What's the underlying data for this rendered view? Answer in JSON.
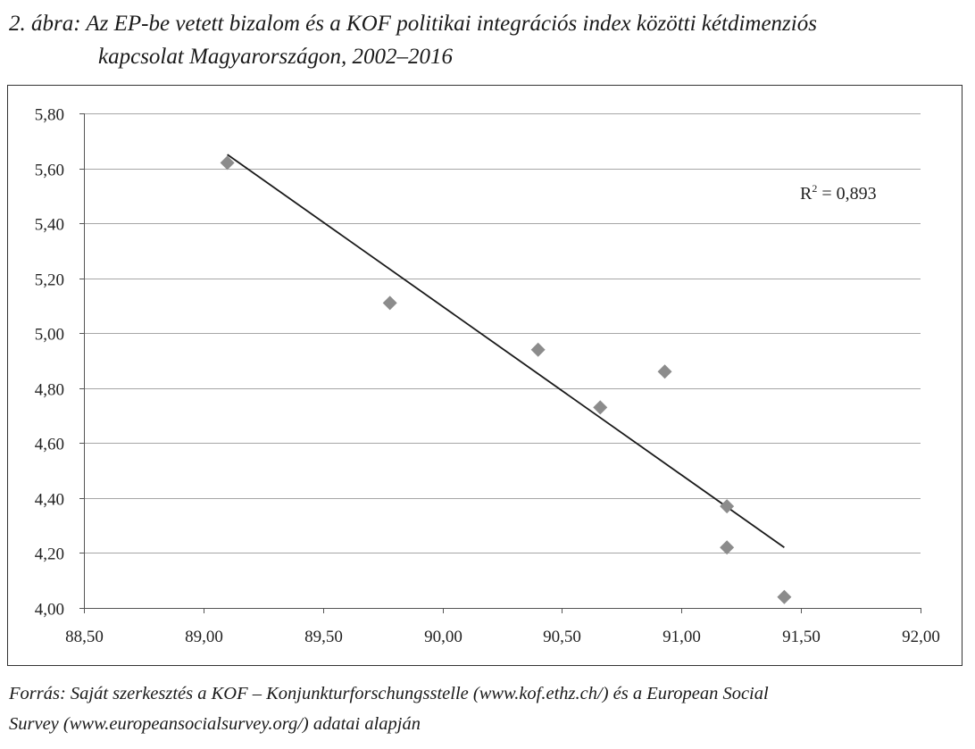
{
  "title": {
    "line1": "2. ábra: Az EP-be vetett bizalom és a KOF politikai integrációs index közötti kétdimenziós",
    "line2": "kapcsolat Magyarországon, 2002–2016"
  },
  "source": {
    "line1": "Forrás: Saját szerkesztés a KOF – Konjunkturforschungsstelle (www.kof.ethz.ch/) és a European Social",
    "line2": "Survey (www.europeansocialsurvey.org/) adatai alapján"
  },
  "chart_data": {
    "type": "scatter",
    "xlim": [
      88.5,
      92.0
    ],
    "ylim": [
      4.0,
      5.8
    ],
    "x_ticks": [
      "88,50",
      "89,00",
      "89,50",
      "90,00",
      "90,50",
      "91,00",
      "91,50",
      "92,00"
    ],
    "y_ticks": [
      "4,00",
      "4,20",
      "4,40",
      "4,60",
      "4,80",
      "5,00",
      "5,20",
      "5,40",
      "5,60",
      "5,80"
    ],
    "grid": "horizontal",
    "points": [
      {
        "x": 89.1,
        "y": 5.62
      },
      {
        "x": 89.78,
        "y": 5.11
      },
      {
        "x": 90.4,
        "y": 4.94
      },
      {
        "x": 90.66,
        "y": 4.73
      },
      {
        "x": 90.93,
        "y": 4.86
      },
      {
        "x": 91.19,
        "y": 4.37
      },
      {
        "x": 91.19,
        "y": 4.22
      },
      {
        "x": 91.43,
        "y": 4.04
      }
    ],
    "trendline": {
      "type": "linear",
      "x_range": [
        89.1,
        91.43
      ],
      "y_range": [
        5.65,
        4.22
      ]
    },
    "annotation": {
      "r2_label": "R",
      "r2_sup": "2",
      "r2_value": " = 0,893"
    },
    "colors": {
      "marker": "#8c8c8c",
      "trendline": "#1a1a1a",
      "grid": "#a6a6a6"
    }
  }
}
